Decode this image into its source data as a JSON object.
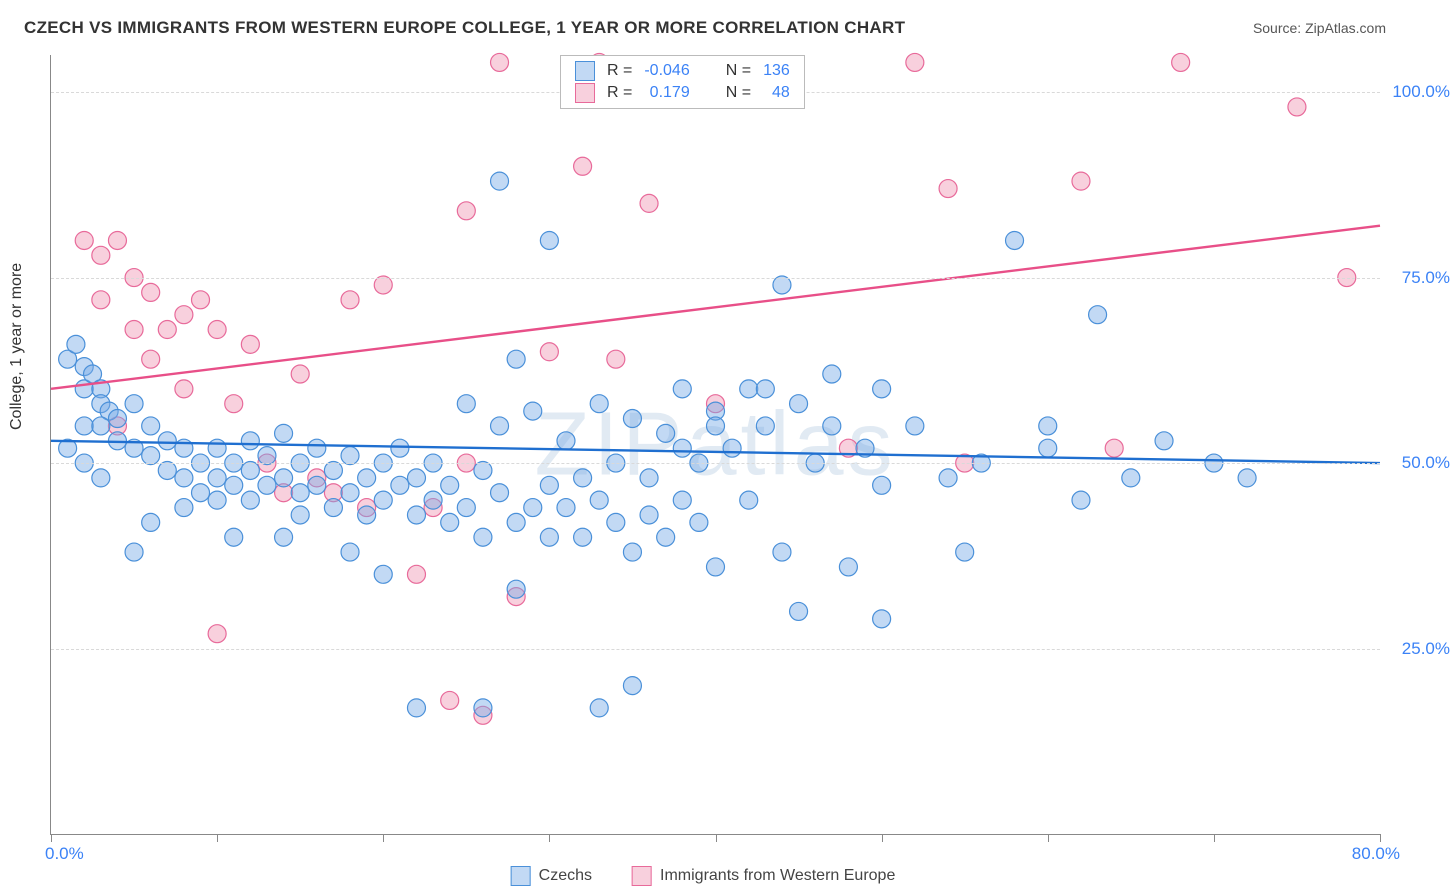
{
  "title": "CZECH VS IMMIGRANTS FROM WESTERN EUROPE COLLEGE, 1 YEAR OR MORE CORRELATION CHART",
  "source": "Source: ZipAtlas.com",
  "watermark": "ZIPatlas",
  "y_axis_title": "College, 1 year or more",
  "chart": {
    "type": "scatter",
    "xlim": [
      0,
      80
    ],
    "ylim": [
      0,
      105
    ],
    "x_ticks": [
      0,
      10,
      20,
      30,
      40,
      50,
      60,
      70,
      80
    ],
    "y_gridlines": [
      25,
      50,
      75,
      100
    ],
    "y_tick_labels": [
      "25.0%",
      "50.0%",
      "75.0%",
      "100.0%"
    ],
    "x_label_start": "0.0%",
    "x_label_end": "80.0%",
    "grid_color": "#d9d9d9",
    "axis_color": "#888888",
    "tick_label_color": "#3b82f6",
    "background_color": "#ffffff",
    "marker_radius": 9,
    "marker_stroke_width": 1.2,
    "trend_line_width": 2.4,
    "series": [
      {
        "name": "Czechs",
        "fill": "rgba(120,170,230,0.45)",
        "stroke": "#4a90d9",
        "line_color": "#1f6fd0",
        "R": "-0.046",
        "N": "136",
        "trend": {
          "x1": 0,
          "y1": 53,
          "x2": 80,
          "y2": 50
        },
        "points": [
          [
            1,
            64
          ],
          [
            1.5,
            66
          ],
          [
            2,
            63
          ],
          [
            2,
            60
          ],
          [
            2.5,
            62
          ],
          [
            3,
            60
          ],
          [
            3,
            58
          ],
          [
            3.5,
            57
          ],
          [
            2,
            55
          ],
          [
            3,
            55
          ],
          [
            4,
            56
          ],
          [
            5,
            58
          ],
          [
            1,
            52
          ],
          [
            2,
            50
          ],
          [
            3,
            48
          ],
          [
            4,
            53
          ],
          [
            5,
            52
          ],
          [
            6,
            55
          ],
          [
            6,
            51
          ],
          [
            7,
            53
          ],
          [
            7,
            49
          ],
          [
            8,
            52
          ],
          [
            8,
            48
          ],
          [
            9,
            50
          ],
          [
            9,
            46
          ],
          [
            10,
            52
          ],
          [
            10,
            48
          ],
          [
            10,
            45
          ],
          [
            11,
            50
          ],
          [
            11,
            47
          ],
          [
            12,
            53
          ],
          [
            12,
            49
          ],
          [
            12,
            45
          ],
          [
            13,
            51
          ],
          [
            13,
            47
          ],
          [
            14,
            54
          ],
          [
            14,
            48
          ],
          [
            15,
            50
          ],
          [
            15,
            46
          ],
          [
            15,
            43
          ],
          [
            16,
            52
          ],
          [
            16,
            47
          ],
          [
            17,
            49
          ],
          [
            17,
            44
          ],
          [
            18,
            51
          ],
          [
            18,
            46
          ],
          [
            19,
            48
          ],
          [
            19,
            43
          ],
          [
            20,
            50
          ],
          [
            20,
            45
          ],
          [
            21,
            52
          ],
          [
            21,
            47
          ],
          [
            22,
            48
          ],
          [
            22,
            43
          ],
          [
            23,
            50
          ],
          [
            23,
            45
          ],
          [
            24,
            47
          ],
          [
            24,
            42
          ],
          [
            25,
            58
          ],
          [
            25,
            44
          ],
          [
            26,
            49
          ],
          [
            26,
            40
          ],
          [
            27,
            55
          ],
          [
            27,
            46
          ],
          [
            28,
            64
          ],
          [
            28,
            42
          ],
          [
            29,
            57
          ],
          [
            29,
            44
          ],
          [
            30,
            47
          ],
          [
            30,
            40
          ],
          [
            31,
            53
          ],
          [
            31,
            44
          ],
          [
            32,
            48
          ],
          [
            32,
            40
          ],
          [
            33,
            58
          ],
          [
            33,
            45
          ],
          [
            34,
            50
          ],
          [
            34,
            42
          ],
          [
            35,
            56
          ],
          [
            35,
            38
          ],
          [
            36,
            48
          ],
          [
            36,
            43
          ],
          [
            37,
            54
          ],
          [
            37,
            40
          ],
          [
            38,
            60
          ],
          [
            38,
            45
          ],
          [
            39,
            50
          ],
          [
            39,
            42
          ],
          [
            40,
            57
          ],
          [
            40,
            36
          ],
          [
            41,
            52
          ],
          [
            42,
            60
          ],
          [
            42,
            45
          ],
          [
            43,
            55
          ],
          [
            44,
            74
          ],
          [
            44,
            38
          ],
          [
            45,
            58
          ],
          [
            45,
            30
          ],
          [
            46,
            50
          ],
          [
            47,
            55
          ],
          [
            48,
            36
          ],
          [
            49,
            52
          ],
          [
            50,
            47
          ],
          [
            50,
            29
          ],
          [
            52,
            55
          ],
          [
            54,
            48
          ],
          [
            55,
            38
          ],
          [
            56,
            50
          ],
          [
            58,
            80
          ],
          [
            60,
            52
          ],
          [
            62,
            45
          ],
          [
            63,
            70
          ],
          [
            65,
            48
          ],
          [
            67,
            53
          ],
          [
            70,
            50
          ],
          [
            72,
            48
          ],
          [
            27,
            88
          ],
          [
            30,
            80
          ],
          [
            22,
            17
          ],
          [
            26,
            17
          ],
          [
            33,
            17
          ],
          [
            35,
            20
          ],
          [
            18,
            38
          ],
          [
            20,
            35
          ],
          [
            28,
            33
          ],
          [
            14,
            40
          ],
          [
            8,
            44
          ],
          [
            6,
            42
          ],
          [
            5,
            38
          ],
          [
            11,
            40
          ],
          [
            60,
            55
          ],
          [
            50,
            60
          ],
          [
            47,
            62
          ],
          [
            43,
            60
          ],
          [
            40,
            55
          ],
          [
            38,
            52
          ]
        ]
      },
      {
        "name": "Immigrants from Western Europe",
        "fill": "rgba(240,150,180,0.45)",
        "stroke": "#e86a9a",
        "line_color": "#e84f88",
        "R": "0.179",
        "N": "48",
        "trend": {
          "x1": 0,
          "y1": 60,
          "x2": 80,
          "y2": 82
        },
        "points": [
          [
            2,
            80
          ],
          [
            3,
            78
          ],
          [
            4,
            80
          ],
          [
            5,
            75
          ],
          [
            3,
            72
          ],
          [
            6,
            73
          ],
          [
            7,
            68
          ],
          [
            8,
            70
          ],
          [
            5,
            68
          ],
          [
            9,
            72
          ],
          [
            10,
            68
          ],
          [
            6,
            64
          ],
          [
            12,
            66
          ],
          [
            8,
            60
          ],
          [
            4,
            55
          ],
          [
            11,
            58
          ],
          [
            15,
            62
          ],
          [
            18,
            72
          ],
          [
            20,
            74
          ],
          [
            13,
            50
          ],
          [
            14,
            46
          ],
          [
            16,
            48
          ],
          [
            17,
            46
          ],
          [
            19,
            44
          ],
          [
            25,
            84
          ],
          [
            27,
            104
          ],
          [
            33,
            104
          ],
          [
            32,
            90
          ],
          [
            36,
            85
          ],
          [
            25,
            50
          ],
          [
            23,
            44
          ],
          [
            26,
            16
          ],
          [
            24,
            18
          ],
          [
            22,
            35
          ],
          [
            28,
            32
          ],
          [
            52,
            104
          ],
          [
            54,
            87
          ],
          [
            30,
            65
          ],
          [
            34,
            64
          ],
          [
            40,
            58
          ],
          [
            48,
            52
          ],
          [
            55,
            50
          ],
          [
            62,
            88
          ],
          [
            64,
            52
          ],
          [
            68,
            104
          ],
          [
            75,
            98
          ],
          [
            78,
            75
          ],
          [
            10,
            27
          ]
        ]
      }
    ]
  },
  "legend": {
    "items": [
      "Czechs",
      "Immigrants from Western Europe"
    ]
  },
  "stats_box": {
    "r_label": "R =",
    "n_label": "N ="
  }
}
